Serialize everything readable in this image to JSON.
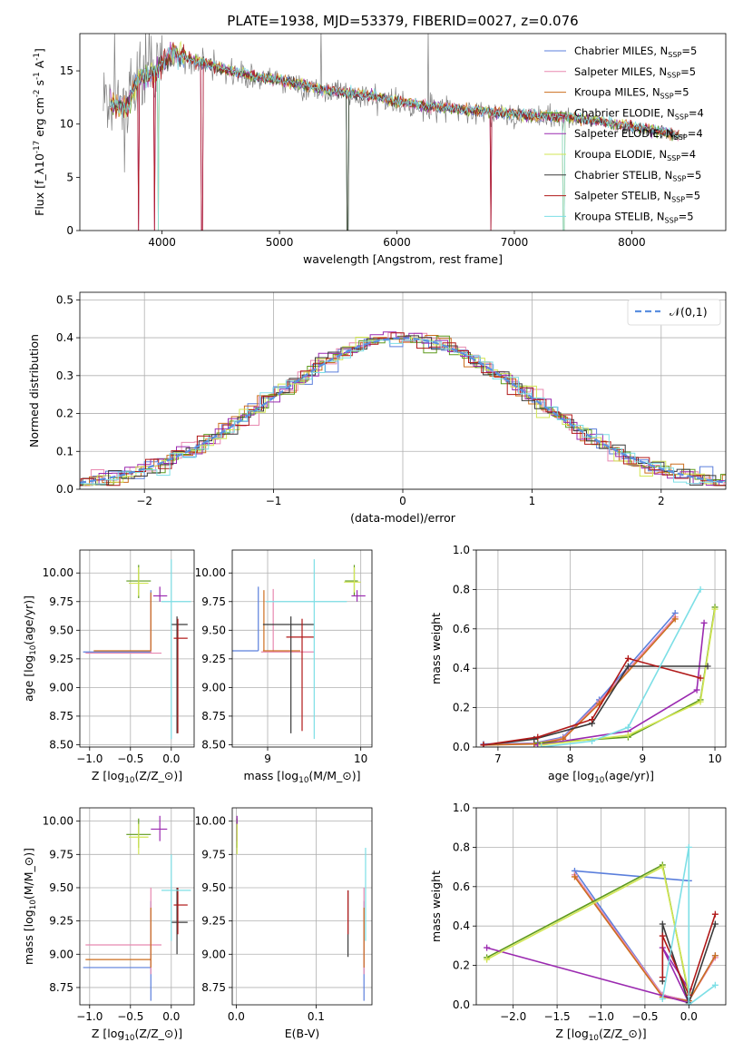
{
  "figure_title": "PLATE=1938, MJD=53379, FIBERID=0027, z=0.076",
  "series": [
    {
      "name": "Chabrier MILES, N$_{SSP}$=5",
      "color": "#5b7fdc"
    },
    {
      "name": "Salpeter MILES, N$_{SSP}$=5",
      "color": "#e889b0"
    },
    {
      "name": "Kroupa MILES, N$_{SSP}$=5",
      "color": "#cc6e1e"
    },
    {
      "name": "Chabrier ELODIE, N$_{SSP}$=4",
      "color": "#5e9a1c"
    },
    {
      "name": "Salpeter ELODIE, N$_{SSP}$=4",
      "color": "#9b2ab0"
    },
    {
      "name": "Kroupa ELODIE, N$_{SSP}$=4",
      "color": "#d2e654"
    },
    {
      "name": "Chabrier STELIB, N$_{SSP}$=5",
      "color": "#3a3a3a"
    },
    {
      "name": "Salpeter STELIB, N$_{SSP}$=5",
      "color": "#b01818"
    },
    {
      "name": "Kroupa STELIB, N$_{SSP}$=5",
      "color": "#7ddfe6"
    }
  ],
  "chart_data": [
    {
      "id": "spectrum",
      "type": "line",
      "title": "PLATE=1938, MJD=53379, FIBERID=0027, z=0.076",
      "xlabel": "wavelength [Angstrom, rest frame]",
      "ylabel": "Flux [f$_\\lambda$10$^{-17}$ erg cm$^{-2}$ s$^{-1}$ A$^{-1}$]",
      "xlim": [
        3300,
        8800
      ],
      "ylim": [
        0,
        18.5
      ],
      "xticks": [
        4000,
        5000,
        6000,
        7000,
        8000
      ],
      "yticks": [
        0,
        5,
        10,
        15
      ],
      "legend": "upper right",
      "data_spectrum": {
        "name": "data",
        "color": "#808080",
        "x": [
          3560,
          3700,
          3800,
          3900,
          4000,
          4100,
          4200,
          4400,
          4600,
          4800,
          5000,
          5200,
          5400,
          5600,
          5800,
          6000,
          6200,
          6400,
          6600,
          6800,
          7000,
          7200,
          7400,
          7600,
          7800,
          8000,
          8200,
          8400
        ],
        "y": [
          12.0,
          11.5,
          14.0,
          14.5,
          15.5,
          16.5,
          16.0,
          15.5,
          14.8,
          14.3,
          14.0,
          13.5,
          13.0,
          12.8,
          12.5,
          12.0,
          11.6,
          11.4,
          11.2,
          11.0,
          10.8,
          10.6,
          10.5,
          10.3,
          10.0,
          9.6,
          9.3,
          8.8
        ]
      },
      "model_spectrum": {
        "x": [
          3560,
          3700,
          3800,
          3900,
          4000,
          4100,
          4200,
          4400,
          4600,
          4800,
          5000,
          5200,
          5400,
          5600,
          5800,
          6000,
          6200,
          6400,
          6600,
          6800,
          7000,
          7200,
          7400,
          7600,
          7800,
          8000,
          8200,
          8400
        ],
        "y": [
          11.8,
          11.6,
          14.2,
          14.6,
          15.6,
          16.6,
          16.2,
          15.6,
          14.9,
          14.4,
          14.1,
          13.6,
          13.1,
          12.9,
          12.6,
          12.1,
          11.7,
          11.5,
          11.3,
          11.1,
          10.9,
          10.7,
          10.6,
          10.4,
          10.1,
          9.7,
          9.4,
          8.9
        ]
      }
    },
    {
      "id": "residual-hist",
      "type": "step",
      "xlabel": "(data-model)/error",
      "ylabel": "Normed distribution",
      "xlim": [
        -2.5,
        2.5
      ],
      "ylim": [
        0,
        0.52
      ],
      "xticks": [
        -2,
        -1,
        0,
        1,
        2
      ],
      "yticks": [
        0.0,
        0.1,
        0.2,
        0.3,
        0.4,
        0.5
      ],
      "reference_curve": {
        "name": "$\\mathcal{N}(0,1)$",
        "mean": 0,
        "sigma": 1,
        "color": "#5b8fe0"
      },
      "legend": "upper right",
      "bin_width": 0.1
    },
    {
      "id": "age-vs-Z",
      "type": "errorbar",
      "xlabel": "Z [log$_{10}$($Z/Z_\\odot$)]",
      "ylabel": "age  [log$_{10}$($age/yr$)]",
      "xlim": [
        -1.12,
        0.28
      ],
      "ylim": [
        8.48,
        10.2
      ],
      "xticks": [
        -1.0,
        -0.5,
        0.0
      ],
      "yticks": [
        8.5,
        8.75,
        9.0,
        9.25,
        9.5,
        9.75,
        10.0
      ],
      "points": [
        {
          "x": -0.25,
          "y": 9.31,
          "xlo": -1.08,
          "xhi": -0.25,
          "ylo": 9.31,
          "yhi": 9.85
        },
        {
          "x": -0.25,
          "y": 9.3,
          "xlo": -1.05,
          "xhi": -0.12,
          "ylo": 9.3,
          "yhi": 9.8
        },
        {
          "x": -0.25,
          "y": 9.32,
          "xlo": -0.95,
          "xhi": -0.25,
          "ylo": 9.32,
          "yhi": 9.83
        },
        {
          "x": -0.4,
          "y": 9.93,
          "xlo": -0.55,
          "xhi": -0.25,
          "ylo": 9.78,
          "yhi": 10.07
        },
        {
          "x": -0.14,
          "y": 9.8,
          "xlo": -0.22,
          "xhi": -0.05,
          "ylo": 9.75,
          "yhi": 9.88
        },
        {
          "x": -0.4,
          "y": 9.91,
          "xlo": -0.52,
          "xhi": -0.28,
          "ylo": 9.8,
          "yhi": 10.05
        },
        {
          "x": 0.07,
          "y": 9.55,
          "xlo": 0.0,
          "xhi": 0.2,
          "ylo": 8.6,
          "yhi": 9.62
        },
        {
          "x": 0.08,
          "y": 9.43,
          "xlo": 0.03,
          "xhi": 0.2,
          "ylo": 8.6,
          "yhi": 9.6
        },
        {
          "x": 0.0,
          "y": 9.75,
          "xlo": -0.12,
          "xhi": 0.24,
          "ylo": 8.55,
          "yhi": 10.12
        }
      ]
    },
    {
      "id": "age-vs-mass",
      "type": "errorbar",
      "xlabel": "mass [log$_{10}$($M/M_\\odot$)]",
      "xlim": [
        8.62,
        10.12
      ],
      "ylim": [
        8.48,
        10.2
      ],
      "xticks": [
        9,
        10
      ],
      "yticks": [
        8.5,
        8.75,
        9.0,
        9.25,
        9.5,
        9.75,
        10.0
      ],
      "points": [
        {
          "x": 8.9,
          "y": 9.32,
          "xlo": 8.62,
          "xhi": 8.9,
          "ylo": 9.32,
          "yhi": 9.88
        },
        {
          "x": 9.06,
          "y": 9.31,
          "xlo": 8.93,
          "xhi": 9.5,
          "ylo": 9.31,
          "yhi": 9.86
        },
        {
          "x": 8.96,
          "y": 9.32,
          "xlo": 8.95,
          "xhi": 9.35,
          "ylo": 9.32,
          "yhi": 9.85
        },
        {
          "x": 9.93,
          "y": 9.93,
          "xlo": 9.83,
          "xhi": 9.97,
          "ylo": 9.8,
          "yhi": 10.07
        },
        {
          "x": 9.96,
          "y": 9.8,
          "xlo": 9.9,
          "xhi": 10.05,
          "ylo": 9.75,
          "yhi": 9.85
        },
        {
          "x": 9.93,
          "y": 9.92,
          "xlo": 9.82,
          "xhi": 10.0,
          "ylo": 9.83,
          "yhi": 10.05
        },
        {
          "x": 9.25,
          "y": 9.55,
          "xlo": 8.95,
          "xhi": 9.5,
          "ylo": 8.6,
          "yhi": 9.62
        },
        {
          "x": 9.37,
          "y": 9.44,
          "xlo": 9.2,
          "xhi": 9.5,
          "ylo": 8.62,
          "yhi": 9.6
        },
        {
          "x": 9.5,
          "y": 9.75,
          "xlo": 8.98,
          "xhi": 9.85,
          "ylo": 8.55,
          "yhi": 10.12
        }
      ]
    },
    {
      "id": "weight-vs-age",
      "type": "line",
      "xlabel": "age  [log$_{10}$($age/yr$)]",
      "ylabel": "mass weight",
      "xlim": [
        6.7,
        10.15
      ],
      "ylim": [
        0,
        1.0
      ],
      "xticks": [
        7,
        8,
        9,
        10
      ],
      "yticks": [
        0.0,
        0.2,
        0.4,
        0.6,
        0.8,
        1.0
      ],
      "series": [
        {
          "x": [
            6.8,
            7.5,
            7.9,
            8.4,
            9.45
          ],
          "y": [
            0.015,
            0.02,
            0.05,
            0.24,
            0.68
          ]
        },
        {
          "x": [
            6.8,
            7.5,
            7.9,
            8.4,
            9.45
          ],
          "y": [
            0.012,
            0.018,
            0.045,
            0.23,
            0.66
          ]
        },
        {
          "x": [
            6.8,
            7.5,
            7.9,
            8.4,
            9.45
          ],
          "y": [
            0.01,
            0.015,
            0.04,
            0.22,
            0.65
          ]
        },
        {
          "x": [
            7.55,
            8.8,
            9.8,
            10.0
          ],
          "y": [
            0.02,
            0.05,
            0.24,
            0.71
          ]
        },
        {
          "x": [
            7.55,
            8.8,
            9.75,
            9.85
          ],
          "y": [
            0.01,
            0.08,
            0.29,
            0.63
          ]
        },
        {
          "x": [
            7.6,
            8.8,
            9.8,
            10.0
          ],
          "y": [
            0.01,
            0.06,
            0.23,
            0.7
          ]
        },
        {
          "x": [
            6.8,
            7.5,
            8.3,
            8.8,
            9.9
          ],
          "y": [
            0.01,
            0.04,
            0.12,
            0.41,
            0.41
          ]
        },
        {
          "x": [
            6.8,
            7.55,
            8.3,
            8.8,
            9.8
          ],
          "y": [
            0.01,
            0.05,
            0.14,
            0.45,
            0.35
          ]
        },
        {
          "x": [
            7.6,
            8.3,
            8.8,
            9.8
          ],
          "y": [
            0.0,
            0.03,
            0.1,
            0.8
          ]
        }
      ]
    },
    {
      "id": "mass-vs-Z",
      "type": "errorbar",
      "xlabel": "Z [log$_{10}$($Z/Z_\\odot$)]",
      "ylabel": "mass [log$_{10}$($M/M_\\odot$)]",
      "xlim": [
        -1.12,
        0.28
      ],
      "ylim": [
        8.62,
        10.1
      ],
      "xticks": [
        -1.0,
        -0.5,
        0.0
      ],
      "yticks": [
        8.75,
        9.0,
        9.25,
        9.5,
        9.75,
        10.0
      ],
      "points": [
        {
          "x": -0.25,
          "y": 8.9,
          "xlo": -1.08,
          "xhi": -0.25,
          "ylo": 8.65,
          "yhi": 9.4
        },
        {
          "x": -0.25,
          "y": 9.07,
          "xlo": -1.05,
          "xhi": -0.12,
          "ylo": 8.85,
          "yhi": 9.5
        },
        {
          "x": -0.25,
          "y": 8.96,
          "xlo": -1.05,
          "xhi": -0.25,
          "ylo": 8.9,
          "yhi": 9.35
        },
        {
          "x": -0.4,
          "y": 9.9,
          "xlo": -0.55,
          "xhi": -0.25,
          "ylo": 9.8,
          "yhi": 10.02
        },
        {
          "x": -0.14,
          "y": 9.94,
          "xlo": -0.25,
          "xhi": -0.05,
          "ylo": 9.85,
          "yhi": 10.04
        },
        {
          "x": -0.4,
          "y": 9.88,
          "xlo": -0.52,
          "xhi": -0.28,
          "ylo": 9.75,
          "yhi": 9.98
        },
        {
          "x": 0.07,
          "y": 9.24,
          "xlo": 0.0,
          "xhi": 0.2,
          "ylo": 9.0,
          "yhi": 9.5
        },
        {
          "x": 0.08,
          "y": 9.37,
          "xlo": 0.03,
          "xhi": 0.2,
          "ylo": 9.15,
          "yhi": 9.5
        },
        {
          "x": 0.0,
          "y": 9.48,
          "xlo": -0.12,
          "xhi": 0.24,
          "ylo": 9.1,
          "yhi": 9.75
        }
      ]
    },
    {
      "id": "mass-vs-ebv",
      "type": "errorbar",
      "xlabel": "E(B-V)",
      "xlim": [
        -0.005,
        0.17
      ],
      "ylim": [
        8.62,
        10.1
      ],
      "xticks": [
        0.0,
        0.1
      ],
      "yticks": [
        8.75,
        9.0,
        9.25,
        9.5,
        9.75,
        10.0
      ],
      "points": [
        {
          "x": 0.16,
          "y": 8.9,
          "ylo": 8.65,
          "yhi": 9.4
        },
        {
          "x": 0.16,
          "y": 9.07,
          "ylo": 8.85,
          "yhi": 9.5
        },
        {
          "x": 0.16,
          "y": 8.96,
          "ylo": 8.9,
          "yhi": 9.35
        },
        {
          "x": 0.001,
          "y": 9.9,
          "ylo": 9.8,
          "yhi": 10.02
        },
        {
          "x": 0.001,
          "y": 9.94,
          "ylo": 9.85,
          "yhi": 10.04
        },
        {
          "x": 0.001,
          "y": 9.88,
          "ylo": 9.75,
          "yhi": 9.98
        },
        {
          "x": 0.14,
          "y": 9.24,
          "ylo": 8.98,
          "yhi": 9.48
        },
        {
          "x": 0.14,
          "y": 9.37,
          "ylo": 9.15,
          "yhi": 9.48
        },
        {
          "x": 0.162,
          "y": 9.48,
          "ylo": 9.1,
          "yhi": 9.8
        }
      ]
    },
    {
      "id": "weight-vs-Z",
      "type": "line",
      "xlabel": "Z [log$_{10}$($Z/Z_\\odot$)]",
      "ylabel": "mass weight",
      "xlim": [
        -2.42,
        0.42
      ],
      "ylim": [
        0,
        1.0
      ],
      "xticks": [
        -2.0,
        -1.5,
        -1.0,
        -0.5,
        0.0
      ],
      "yticks": [
        0.0,
        0.2,
        0.4,
        0.6,
        0.8,
        1.0
      ],
      "series": [
        {
          "x": [
            0.0,
            -1.3,
            -0.3,
            0.0,
            0.3
          ],
          "y": [
            0.63,
            0.68,
            0.05,
            0.02,
            0.25
          ]
        },
        {
          "x": [
            -1.3,
            -0.3,
            0.0,
            0.3
          ],
          "y": [
            0.66,
            0.05,
            0.02,
            0.24
          ]
        },
        {
          "x": [
            -1.3,
            -0.3,
            0.0,
            0.3
          ],
          "y": [
            0.65,
            0.04,
            0.02,
            0.25
          ]
        },
        {
          "x": [
            -2.3,
            -0.3,
            0.0
          ],
          "y": [
            0.24,
            0.71,
            0.05
          ]
        },
        {
          "x": [
            -2.3,
            0.0,
            -0.3,
            0.0
          ],
          "y": [
            0.29,
            0.01,
            0.29,
            0.08
          ]
        },
        {
          "x": [
            -2.3,
            -0.3,
            0.0
          ],
          "y": [
            0.23,
            0.7,
            0.06
          ]
        },
        {
          "x": [
            -0.3,
            -0.3,
            0.0,
            0.3
          ],
          "y": [
            0.12,
            0.41,
            0.01,
            0.41
          ]
        },
        {
          "x": [
            -0.3,
            -0.3,
            0.0,
            0.3
          ],
          "y": [
            0.14,
            0.35,
            0.05,
            0.46
          ]
        },
        {
          "x": [
            -0.3,
            0.0,
            0.0,
            0.3
          ],
          "y": [
            0.03,
            0.8,
            0.0,
            0.1
          ]
        }
      ]
    }
  ]
}
